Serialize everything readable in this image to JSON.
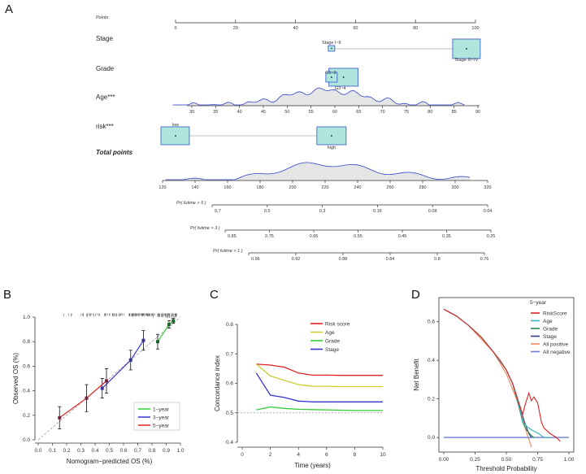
{
  "panels": {
    "a": "A",
    "b": "B",
    "c": "C",
    "d": "D"
  },
  "chart_data": [
    {
      "type": "nomogram",
      "id": "A",
      "points_label": "Points",
      "points_scale": {
        "min": 0,
        "max": 100,
        "ticks": [
          0,
          20,
          40,
          60,
          80,
          100
        ]
      },
      "variables": [
        {
          "name": "Stage",
          "levels": [
            {
              "label": "Stage I~II",
              "points": 52
            },
            {
              "label": "Stage III~IV",
              "points": 97
            }
          ]
        },
        {
          "name": "Grade",
          "levels": [
            {
              "label": "G1~2",
              "points": 52
            },
            {
              "label": "G3~4",
              "points": 56
            }
          ]
        },
        {
          "name": "Age***",
          "ticks": [
            30,
            35,
            40,
            45,
            50,
            55,
            60,
            65,
            70,
            75,
            80,
            85,
            90
          ]
        },
        {
          "name": "risk***",
          "levels": [
            {
              "label": "low",
              "points": 0
            },
            {
              "label": "high",
              "points": 52
            }
          ]
        }
      ],
      "total_label": "Total points",
      "total_scale": {
        "min": 120,
        "max": 320,
        "ticks": [
          120,
          140,
          160,
          180,
          200,
          220,
          240,
          260,
          280,
          300,
          320
        ]
      },
      "survival_rows": [
        {
          "label": "Pr( futime > 5 )",
          "ticks": [
            "0.7",
            "0.5",
            "0.3",
            "0.16",
            "0.08",
            "0.04"
          ]
        },
        {
          "label": "Pr( futime > 3 )",
          "ticks": [
            "0.85",
            "0.75",
            "0.65",
            "0.55",
            "0.45",
            "0.35",
            "0.25"
          ]
        },
        {
          "label": "Pr( futime > 1 )",
          "ticks": [
            "0.96",
            "0.92",
            "0.88",
            "0.84",
            "0.8",
            "0.76"
          ]
        }
      ]
    },
    {
      "type": "line",
      "id": "B",
      "xlabel": "Nomogram−predicted OS (%)",
      "ylabel": "Observed OS (%)",
      "xlim": [
        0,
        1
      ],
      "ylim": [
        0,
        1
      ],
      "xticks": [
        "0.0",
        "0.1",
        "0.2",
        "0.3",
        "0.4",
        "0.5",
        "0.6",
        "0.7",
        "0.8",
        "0.9",
        "1.0"
      ],
      "yticks": [
        "0.0",
        "0.2",
        "0.4",
        "0.6",
        "0.8",
        "1.0"
      ],
      "legend": [
        "1−year",
        "3−year",
        "5−year"
      ],
      "series": [
        {
          "name": "1−year",
          "color": "#33cc33",
          "points": [
            {
              "x": 0.84,
              "y": 0.8,
              "err": 0.06
            },
            {
              "x": 0.92,
              "y": 0.94,
              "err": 0.03
            },
            {
              "x": 0.95,
              "y": 0.97,
              "err": 0.02
            }
          ]
        },
        {
          "name": "3−year",
          "color": "#3333cc",
          "points": [
            {
              "x": 0.45,
              "y": 0.42,
              "err": 0.08
            },
            {
              "x": 0.65,
              "y": 0.65,
              "err": 0.08
            },
            {
              "x": 0.74,
              "y": 0.81,
              "err": 0.08
            }
          ]
        },
        {
          "name": "5−year",
          "color": "#dd2222",
          "points": [
            {
              "x": 0.15,
              "y": 0.18,
              "err": 0.09
            },
            {
              "x": 0.34,
              "y": 0.34,
              "err": 0.11
            },
            {
              "x": 0.48,
              "y": 0.48,
              "err": 0.1
            }
          ]
        }
      ]
    },
    {
      "type": "line",
      "id": "C",
      "xlabel": "Time (years)",
      "ylabel": "Concordance index",
      "xlim": [
        0,
        10
      ],
      "ylim": [
        0.4,
        0.8
      ],
      "xticks": [
        "0",
        "2",
        "4",
        "6",
        "8",
        "10"
      ],
      "yticks": [
        "0.4",
        "0.5",
        "0.6",
        "0.7",
        "0.8"
      ],
      "reference_y": 0.5,
      "x": [
        1,
        2,
        3,
        4,
        5,
        6,
        7,
        8,
        9,
        10
      ],
      "series": [
        {
          "name": "Risk score",
          "color": "#dd2222",
          "values": [
            0.665,
            0.662,
            0.655,
            0.635,
            0.628,
            0.628,
            0.627,
            0.627,
            0.627,
            0.627
          ]
        },
        {
          "name": "Age",
          "color": "#cccc33",
          "values": [
            0.665,
            0.625,
            0.61,
            0.596,
            0.59,
            0.59,
            0.589,
            0.589,
            0.589,
            0.589
          ]
        },
        {
          "name": "Grade",
          "color": "#33cc33",
          "values": [
            0.51,
            0.52,
            0.515,
            0.512,
            0.511,
            0.51,
            0.509,
            0.508,
            0.508,
            0.508
          ]
        },
        {
          "name": "Stage",
          "color": "#3333cc",
          "values": [
            0.635,
            0.56,
            0.552,
            0.54,
            0.537,
            0.537,
            0.537,
            0.537,
            0.537,
            0.537
          ]
        }
      ]
    },
    {
      "type": "line",
      "id": "D",
      "xlabel": "Threshold Probability",
      "ylabel": "Net Benefit",
      "xlim": [
        0,
        1
      ],
      "ylim": [
        -0.05,
        0.7
      ],
      "xticks": [
        "0.00",
        "0.25",
        "0.50",
        "0.75",
        "1.00"
      ],
      "yticks": [
        "0.0",
        "0.2",
        "0.4",
        "0.6"
      ],
      "legend_title": "5−year",
      "series": [
        {
          "name": "RiskScore",
          "color": "#dd2222",
          "x": [
            0,
            0.1,
            0.2,
            0.3,
            0.4,
            0.45,
            0.5,
            0.55,
            0.6,
            0.63,
            0.65,
            0.68,
            0.7,
            0.72,
            0.75,
            0.78,
            0.8,
            0.85,
            0.9,
            0.93
          ],
          "y": [
            0.665,
            0.63,
            0.58,
            0.52,
            0.44,
            0.4,
            0.35,
            0.28,
            0.18,
            0.12,
            0.17,
            0.23,
            0.19,
            0.21,
            0.18,
            0.08,
            0.05,
            0.02,
            0.0,
            -0.02
          ]
        },
        {
          "name": "Age",
          "color": "#33b5b5",
          "x": [
            0,
            0.1,
            0.2,
            0.3,
            0.4,
            0.5,
            0.55,
            0.6,
            0.63,
            0.66,
            0.7,
            0.73,
            0.76,
            0.8,
            0.85
          ],
          "y": [
            0.665,
            0.63,
            0.58,
            0.52,
            0.44,
            0.35,
            0.28,
            0.17,
            0.08,
            0.06,
            0.04,
            0.03,
            0.02,
            0.0,
            0.0
          ]
        },
        {
          "name": "Grade",
          "color": "#228844",
          "x": [
            0,
            0.1,
            0.2,
            0.3,
            0.4,
            0.5,
            0.55,
            0.6,
            0.63,
            0.66,
            0.7,
            0.72
          ],
          "y": [
            0.665,
            0.63,
            0.58,
            0.52,
            0.44,
            0.35,
            0.28,
            0.16,
            0.08,
            0.04,
            0.01,
            0.0
          ]
        },
        {
          "name": "Stage",
          "color": "#2c3e8f",
          "x": [
            0,
            0.1,
            0.2,
            0.3,
            0.4,
            0.5,
            0.55,
            0.6,
            0.64,
            0.68,
            0.7
          ],
          "y": [
            0.665,
            0.63,
            0.58,
            0.52,
            0.44,
            0.35,
            0.28,
            0.18,
            0.09,
            0.02,
            0.0
          ]
        },
        {
          "name": "All positive",
          "color": "#f08a5d",
          "x": [
            0,
            0.1,
            0.2,
            0.3,
            0.4,
            0.5,
            0.6,
            0.65,
            0.7
          ],
          "y": [
            0.665,
            0.63,
            0.58,
            0.51,
            0.44,
            0.33,
            0.17,
            0.05,
            -0.05
          ]
        },
        {
          "name": "All negative",
          "color": "#6a7fd0",
          "x": [
            0,
            1
          ],
          "y": [
            0,
            0
          ]
        }
      ]
    }
  ]
}
